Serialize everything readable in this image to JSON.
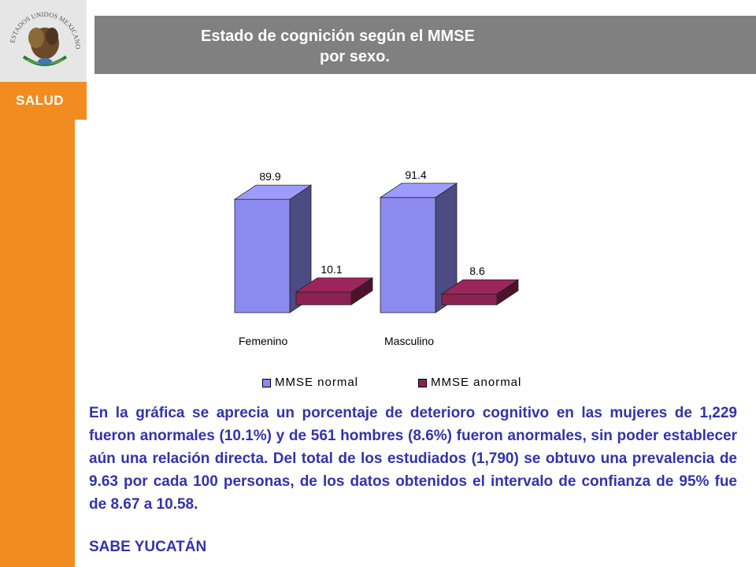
{
  "sidebar": {
    "logo_icon": "coat-of-arms-icon",
    "logo_text": "ESTADOS UNIDOS MEXICANOS",
    "label": "SALUD"
  },
  "header": {
    "title_line1": "Estado de cognición según el MMSE",
    "title_line2": "por sexo."
  },
  "chart_data": {
    "type": "bar",
    "categories": [
      "Femenino",
      "Masculino"
    ],
    "series": [
      {
        "name": "MMSE normal",
        "values": [
          89.9,
          91.4
        ],
        "color": "#8b8bef"
      },
      {
        "name": "MMSE anormal",
        "values": [
          10.1,
          8.6
        ],
        "color": "#8b2252"
      }
    ],
    "data_labels": [
      "89.9",
      "91.4",
      "10.1",
      "8.6"
    ],
    "legend_position": "bottom",
    "grid": false
  },
  "description": "En  la gráfica se aprecia un porcentaje de deterioro cognitivo en las mujeres de 1,229 fueron anormales (10.1%) y de 561  hombres (8.6%) fueron anormales, sin poder establecer aún una relación directa. Del total de los estudiados (1,790) se obtuvo una prevalencia de 9.63 por cada 100 personas, de los datos obtenidos el intervalo de confianza de 95% fue de 8.67 a 10.58.",
  "source": "SABE YUCATÁN"
}
